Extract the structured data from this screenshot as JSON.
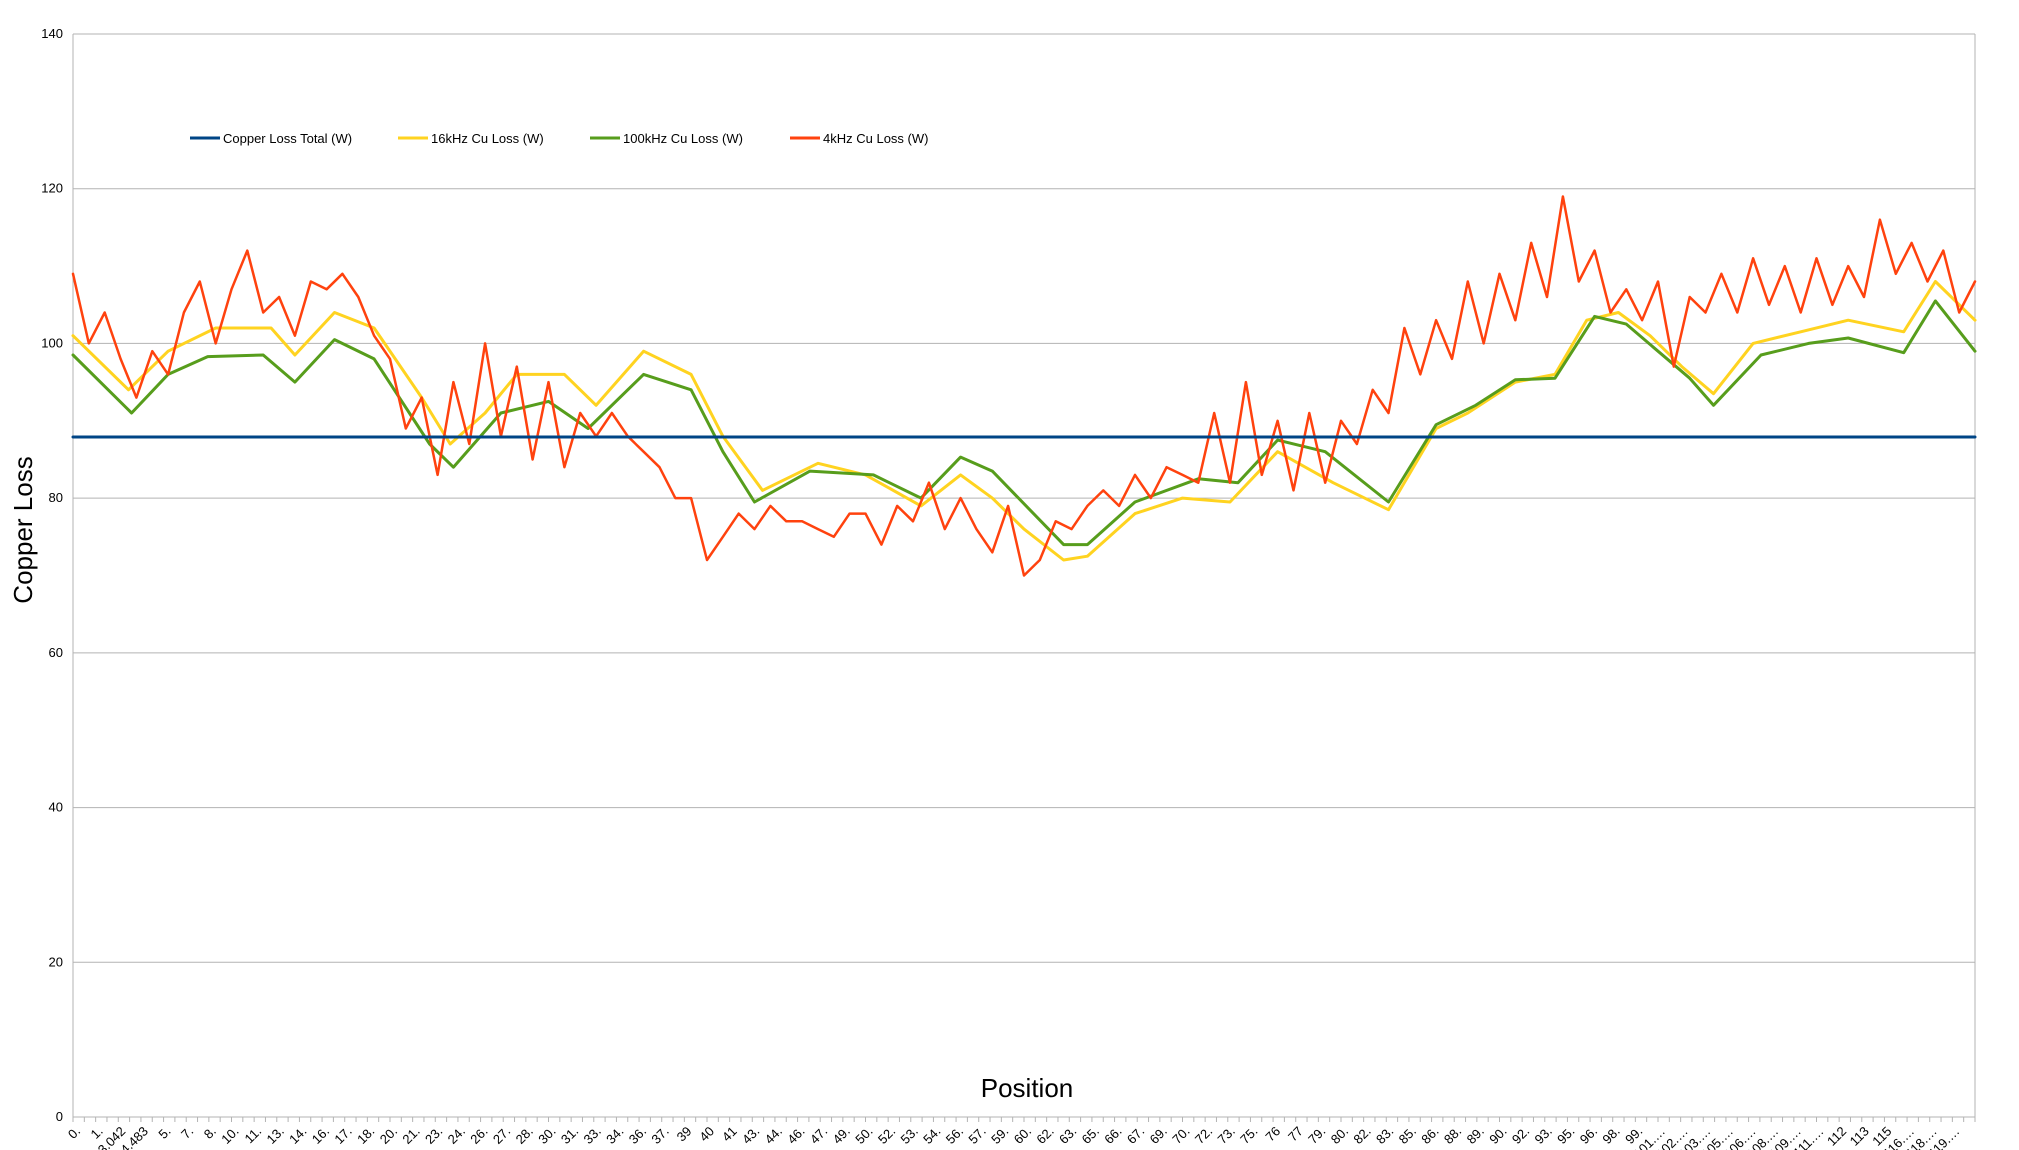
{
  "chart_data": {
    "type": "line",
    "title": "",
    "xlabel": "Position",
    "ylabel": "Copper Loss",
    "ylim": [
      0,
      140
    ],
    "yticks": [
      "0",
      "20",
      "40",
      "60",
      "80",
      "100",
      "120",
      "140"
    ],
    "grid": "horizontal",
    "legend_placement": "top-left inside plot",
    "x_range": [
      0,
      120
    ],
    "x_tick_labels": [
      "0.",
      "1.",
      "3.042",
      "4.483",
      "5.",
      "7.",
      "8.",
      "10.",
      "11.",
      "13.",
      "14.",
      "16.",
      "17.",
      "18.",
      "20.",
      "21.",
      "23.",
      "24.",
      "26.",
      "27.",
      "28.",
      "30.",
      "31.",
      "33.",
      "34.",
      "36.",
      "37.",
      "39",
      "40",
      "41",
      "43.",
      "44.",
      "46.",
      "47.",
      "49.",
      "50.",
      "52.",
      "53.",
      "54.",
      "56.",
      "57.",
      "59.",
      "60.",
      "62.",
      "63.",
      "65.",
      "66.",
      "67.",
      "69.",
      "70.",
      "72.",
      "73.",
      "75.",
      "76",
      "77",
      "79.",
      "80.",
      "82.",
      "83.",
      "85.",
      "86.",
      "88.",
      "89.",
      "90.",
      "92.",
      "93.",
      "95.",
      "96.",
      "98.",
      "99.",
      "101.…",
      "102.…",
      "103.…",
      "105.…",
      "106.…",
      "108.…",
      "109.…",
      "111.…",
      "112",
      "113",
      "115",
      "116.…",
      "118.…",
      "119.…"
    ],
    "series": [
      {
        "name": "Copper Loss Total (W)",
        "color": "#004586",
        "x": [
          0,
          120
        ],
        "y": [
          87.9,
          87.9
        ]
      },
      {
        "name": "16kHz Cu Loss (W)",
        "color": "#ffd320",
        "x": [
          0,
          3.5,
          6,
          9,
          12.5,
          14,
          16.5,
          19,
          22,
          23.8,
          26,
          28,
          31,
          33,
          36,
          39,
          41,
          43.5,
          47,
          50,
          53.5,
          56,
          58,
          60,
          62.5,
          64,
          67,
          70,
          73,
          76,
          79.5,
          83,
          86,
          88,
          91,
          93.5,
          95.5,
          97.5,
          99.5,
          101.5,
          103.5,
          106,
          109,
          112,
          115.5,
          117.5,
          120
        ],
        "y": [
          101,
          94,
          99,
          102,
          102,
          98.5,
          104,
          102,
          93,
          87,
          91,
          96,
          96,
          92,
          99,
          96,
          88,
          81,
          84.5,
          83,
          79,
          83,
          80,
          76,
          72,
          72.5,
          78,
          80,
          79.5,
          86,
          82,
          78.5,
          89,
          91,
          95,
          96,
          103,
          104,
          101,
          97,
          93.5,
          100,
          101.5,
          103,
          101.5,
          108,
          103
        ]
      },
      {
        "name": "100kHz Cu Loss (W)",
        "color": "#579d1c",
        "x": [
          0,
          3.7,
          6,
          8.5,
          12,
          14,
          16.5,
          19,
          22.5,
          24,
          27,
          30,
          32.5,
          36,
          39,
          41,
          43,
          46.5,
          50.5,
          53.5,
          56,
          58,
          62.5,
          64,
          67,
          71,
          73.5,
          76,
          79,
          83,
          86,
          88.5,
          91,
          93.5,
          96,
          98,
          100,
          102,
          103.5,
          106.5,
          109.5,
          112,
          115.5,
          117.5,
          120
        ],
        "y": [
          98.5,
          91,
          96,
          98.3,
          98.5,
          95,
          100.5,
          98,
          87,
          84,
          91,
          92.5,
          89,
          96,
          94,
          86,
          79.5,
          83.5,
          83,
          80,
          85.3,
          83.5,
          74,
          74,
          79.5,
          82.5,
          82,
          87.5,
          86,
          79.5,
          89.5,
          92,
          95.3,
          95.5,
          103.5,
          102.5,
          99,
          95.5,
          92,
          98.5,
          100,
          100.7,
          98.8,
          105.5,
          99
        ]
      },
      {
        "name": "4kHz Cu Loss (W)",
        "color": "#ff420e",
        "x": [
          0,
          1,
          2,
          3,
          4,
          5,
          6,
          7,
          8,
          9,
          10,
          11,
          12,
          13,
          14,
          15,
          16,
          17,
          18,
          19,
          20,
          21,
          22,
          23,
          24,
          25,
          26,
          27,
          28,
          29,
          30,
          31,
          32,
          33,
          34,
          35,
          36,
          37,
          38,
          39,
          40,
          41,
          42,
          43,
          44,
          45,
          46,
          47,
          48,
          49,
          50,
          51,
          52,
          53,
          54,
          55,
          56,
          57,
          58,
          59,
          60,
          61,
          62,
          63,
          64,
          65,
          66,
          67,
          68,
          69,
          70,
          71,
          72,
          73,
          74,
          75,
          76,
          77,
          78,
          79,
          80,
          81,
          82,
          83,
          84,
          85,
          86,
          87,
          88,
          89,
          90,
          91,
          92,
          93,
          94,
          95,
          96,
          97,
          98,
          99,
          100,
          101,
          102,
          103,
          104,
          105,
          106,
          107,
          108,
          109,
          110,
          111,
          112,
          113,
          114,
          115,
          116,
          117,
          118,
          119,
          120
        ],
        "y": [
          109,
          100,
          104,
          98,
          93,
          99,
          96,
          104,
          108,
          100,
          107,
          112,
          104,
          106,
          101,
          108,
          107,
          109,
          106,
          101,
          98,
          89,
          93,
          83,
          95,
          87,
          100,
          88,
          97,
          85,
          95,
          84,
          91,
          88,
          91,
          88,
          86,
          84,
          80,
          80,
          72,
          75,
          78,
          76,
          79,
          77,
          77,
          76,
          75,
          78,
          78,
          74,
          79,
          77,
          82,
          76,
          80,
          76,
          73,
          79,
          70,
          72,
          77,
          76,
          79,
          81,
          79,
          83,
          80,
          84,
          83,
          82,
          91,
          82,
          95,
          83,
          90,
          81,
          91,
          82,
          90,
          87,
          94,
          91,
          102,
          96,
          103,
          98,
          108,
          100,
          109,
          103,
          113,
          106,
          119,
          108,
          112,
          104,
          107,
          103,
          108,
          97,
          106,
          104,
          109,
          104,
          111,
          105,
          110,
          104,
          111,
          105,
          110,
          106,
          116,
          109,
          113,
          108,
          112,
          104,
          108
        ]
      }
    ]
  }
}
